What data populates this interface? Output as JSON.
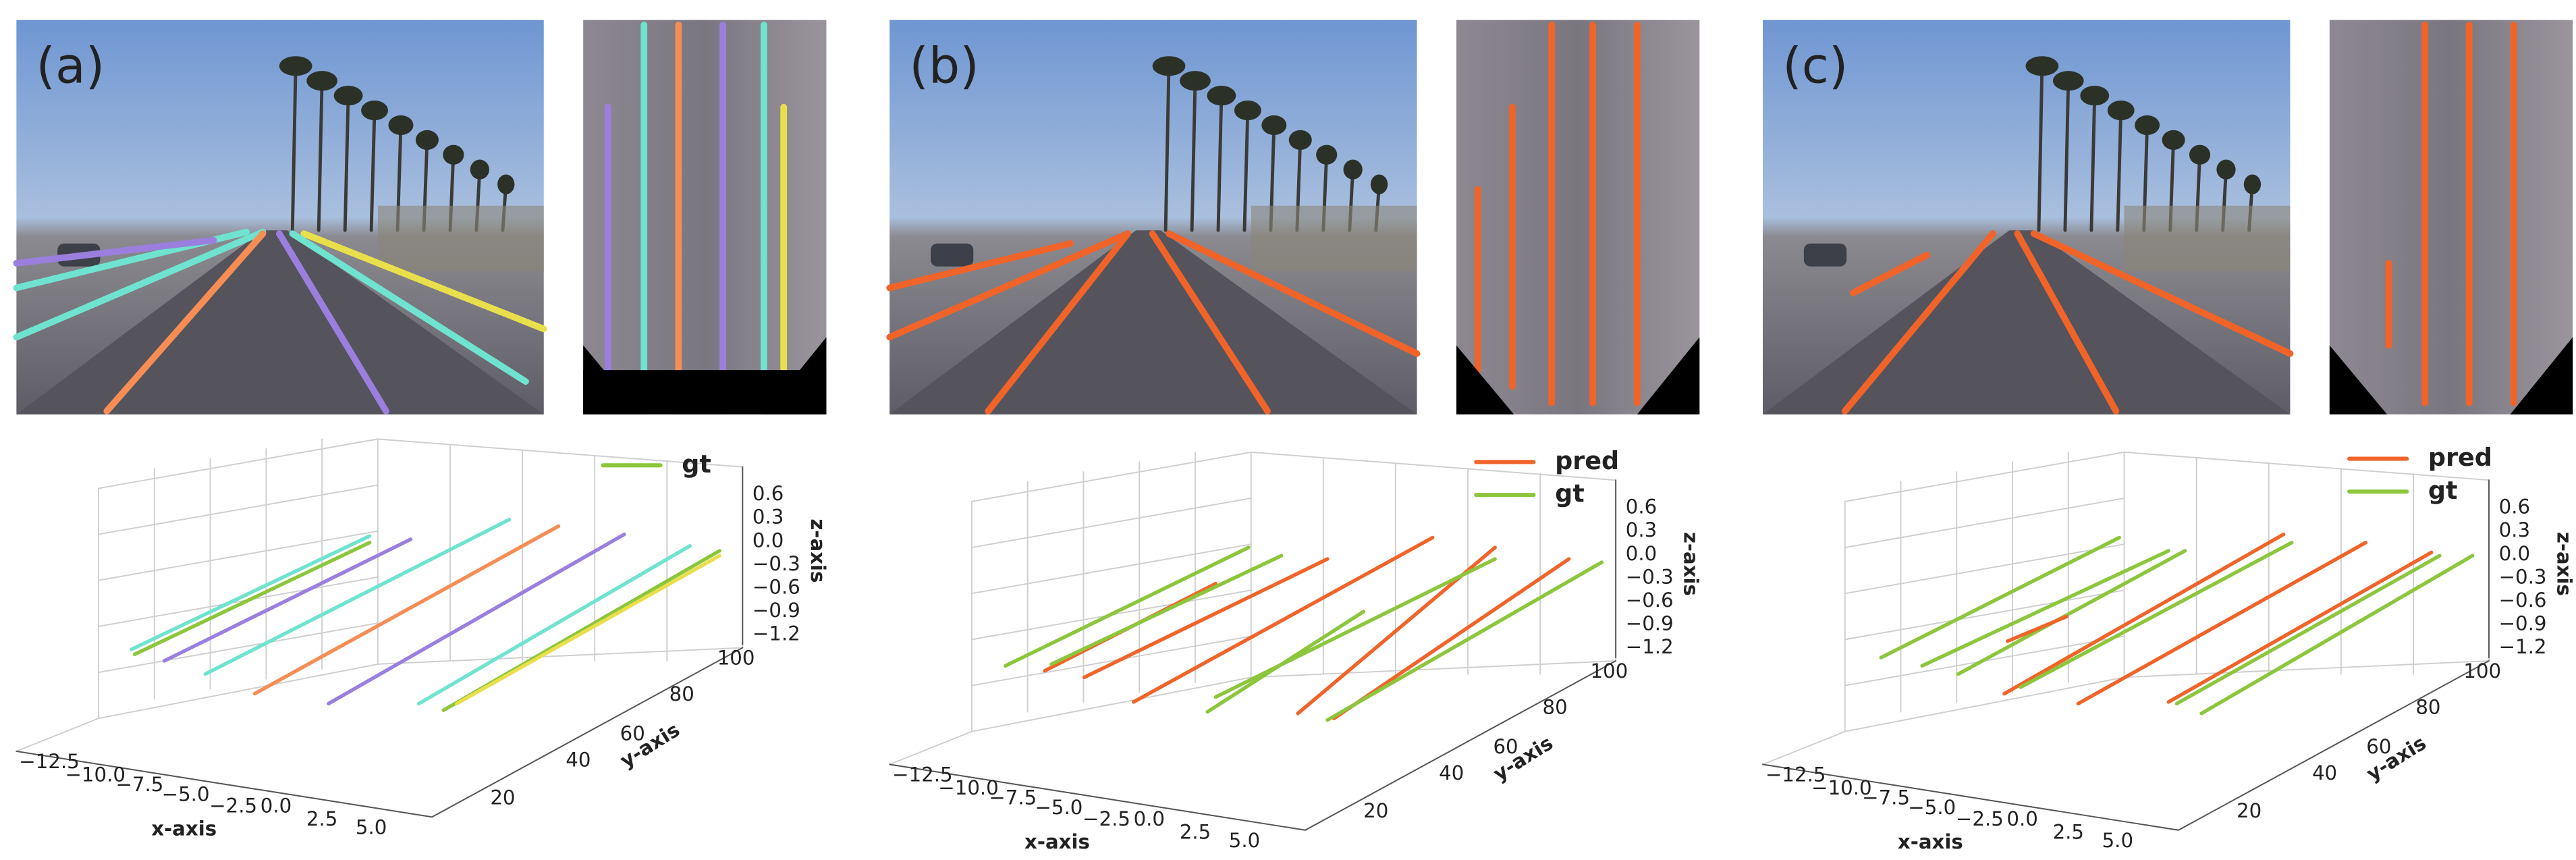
{
  "panels": [
    {
      "label": "(a)",
      "legend": [
        "gt"
      ]
    },
    {
      "label": "(b)",
      "legend": [
        "pred",
        "gt"
      ]
    },
    {
      "label": "(c)",
      "legend": [
        "pred",
        "gt"
      ]
    }
  ],
  "axes": {
    "x_label": "x-axis",
    "y_label": "y-axis",
    "z_label": "z-axis",
    "x_ticks": [
      "−12.5",
      "−10.0",
      "−7.5",
      "−5.0",
      "−2.5",
      "0.0",
      "2.5",
      "5.0"
    ],
    "y_ticks": [
      "20",
      "40",
      "60",
      "80",
      "100"
    ],
    "z_ticks": [
      "0.6",
      "0.3",
      "0.0",
      "−0.3",
      "−0.6",
      "−0.9",
      "−1.2"
    ]
  }
}
